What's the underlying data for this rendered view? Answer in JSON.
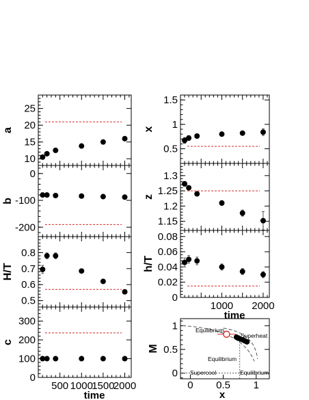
{
  "chart_data": [
    {
      "id": "a",
      "type": "scatter",
      "ylabel": "a",
      "ylim": [
        8,
        29
      ],
      "yticks": [
        "10",
        "15",
        "20",
        "25"
      ],
      "xlim": [
        0,
        2150
      ],
      "x": [
        100,
        200,
        400,
        1000,
        1500,
        2000
      ],
      "y": [
        10.5,
        11.5,
        12.5,
        13.8,
        15.0,
        16.0
      ],
      "reference": 21
    },
    {
      "id": "b",
      "type": "scatter",
      "ylabel": "b",
      "ylim": [
        -235,
        30
      ],
      "yticks": [
        "0",
        "-100",
        "-200"
      ],
      "xlim": [
        0,
        2150
      ],
      "x": [
        100,
        200,
        400,
        1000,
        1500,
        2000
      ],
      "y": [
        -80,
        -80,
        -82,
        -84,
        -86,
        -88
      ],
      "reference": -190
    },
    {
      "id": "ht",
      "type": "scatter",
      "ylabel": "H/T",
      "ylim": [
        0.46,
        0.9
      ],
      "yticks": [
        "0.5",
        "0.6",
        "0.7",
        "0.8"
      ],
      "xlim": [
        0,
        2150
      ],
      "x": [
        100,
        200,
        400,
        1000,
        1500,
        2000
      ],
      "y": [
        0.695,
        0.78,
        0.78,
        0.685,
        0.62,
        0.555
      ],
      "yerr": [
        0.025,
        0.018,
        0.018,
        0.008,
        0.007,
        0.006
      ],
      "reference": 0.57
    },
    {
      "id": "c",
      "type": "scatter",
      "ylabel": "c",
      "ylim": [
        0,
        375
      ],
      "yticks": [
        "0",
        "100",
        "200",
        "300"
      ],
      "xlim": [
        0,
        2150
      ],
      "xlabel": "time",
      "xticks": [
        "500",
        "1000",
        "1500",
        "2000"
      ],
      "x": [
        100,
        200,
        400,
        1000,
        1500,
        2000
      ],
      "y": [
        100,
        100,
        100,
        100,
        100,
        100
      ],
      "reference": 237
    },
    {
      "id": "x",
      "type": "scatter",
      "ylabel": "x",
      "ylim": [
        0.2,
        1.6
      ],
      "yticks": [
        "0.5",
        "1",
        "1.5"
      ],
      "xlim": [
        0,
        2150
      ],
      "x": [
        100,
        200,
        400,
        1000,
        1500,
        2000
      ],
      "y": [
        0.67,
        0.72,
        0.76,
        0.8,
        0.82,
        0.84
      ],
      "yerr": [
        0.06,
        0.05,
        0.04,
        0.03,
        0.04,
        0.07
      ],
      "reference": 0.55
    },
    {
      "id": "z",
      "type": "scatter",
      "ylabel": "z",
      "ylim": [
        1.12,
        1.34
      ],
      "yticks": [
        "1.15",
        "1.2",
        "1.25",
        "1.3"
      ],
      "xlim": [
        0,
        2150
      ],
      "x": [
        100,
        200,
        400,
        1000,
        1500,
        2000
      ],
      "y": [
        1.273,
        1.26,
        1.24,
        1.21,
        1.177,
        1.152
      ],
      "yerr": [
        0.008,
        0.006,
        0.006,
        0.008,
        0.01,
        0.03
      ],
      "reference": 1.25
    },
    {
      "id": "hT",
      "type": "scatter",
      "ylabel": "h/T",
      "ylim": [
        0,
        0.088
      ],
      "yticks": [
        "0",
        "0.02",
        "0.04",
        "0.06",
        "0.08"
      ],
      "xlim": [
        0,
        2150
      ],
      "xlabel": "time",
      "xticks": [
        "1000",
        "2000"
      ],
      "x": [
        100,
        200,
        400,
        1000,
        1500,
        2000
      ],
      "y": [
        0.046,
        0.05,
        0.048,
        0.04,
        0.034,
        0.03
      ],
      "yerr": [
        0.006,
        0.005,
        0.005,
        0.004,
        0.004,
        0.004
      ],
      "reference": 0.015
    },
    {
      "id": "phase",
      "type": "scatter",
      "xlabel": "x",
      "ylabel": "M",
      "xlim": [
        -0.15,
        1.2
      ],
      "ylim": [
        -0.12,
        1.15
      ],
      "xticks": [
        "0",
        "0.5",
        "1"
      ],
      "yticks": [
        "0",
        "0.5",
        "1"
      ],
      "annotations": [
        "Equilibrium",
        "Superheat",
        "Equilibrium",
        "Supercool",
        "Equilibrium"
      ],
      "highlight": {
        "x": 0.55,
        "y": 0.82,
        "xerr": 0.14,
        "yerr": 0.06
      },
      "points": [
        [
          0.7,
          0.76
        ],
        [
          0.73,
          0.74
        ],
        [
          0.76,
          0.72
        ],
        [
          0.8,
          0.7
        ],
        [
          0.83,
          0.68
        ],
        [
          0.86,
          0.66
        ]
      ]
    }
  ]
}
